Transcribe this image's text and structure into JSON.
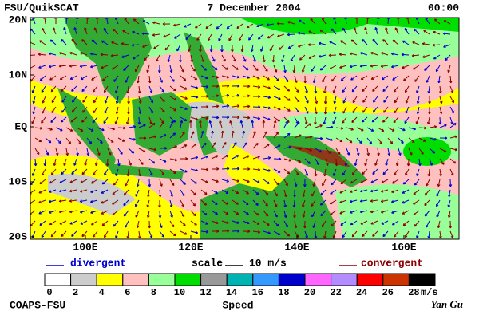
{
  "header": {
    "left": "FSU/QuikSCAT",
    "center": "7 December 2004",
    "right": "00:00"
  },
  "map": {
    "lat_labels": [
      "20N",
      "10N",
      "EQ",
      "10S",
      "20S"
    ],
    "lon_labels": [
      "100E",
      "120E",
      "140E",
      "160E"
    ]
  },
  "legend": {
    "divergent": "divergent",
    "scale": "scale",
    "scale_value": "10 m/s",
    "convergent": "convergent"
  },
  "colorbar": {
    "ticks": [
      0,
      2,
      4,
      6,
      8,
      10,
      12,
      14,
      16,
      18,
      20,
      22,
      24,
      26,
      28
    ],
    "unit": "m/s",
    "title": "Speed",
    "colors": [
      "#ffffff",
      "#cccccc",
      "#ffff00",
      "#ffc0c0",
      "#99ff99",
      "#00dd00",
      "#999999",
      "#00b3b3",
      "#3399ff",
      "#0000cc",
      "#ff66ff",
      "#b38cff",
      "#ff0000",
      "#cc3300",
      "#000000"
    ]
  },
  "footer": {
    "left": "COAPS-FSU",
    "right": "Yan Gu"
  }
}
